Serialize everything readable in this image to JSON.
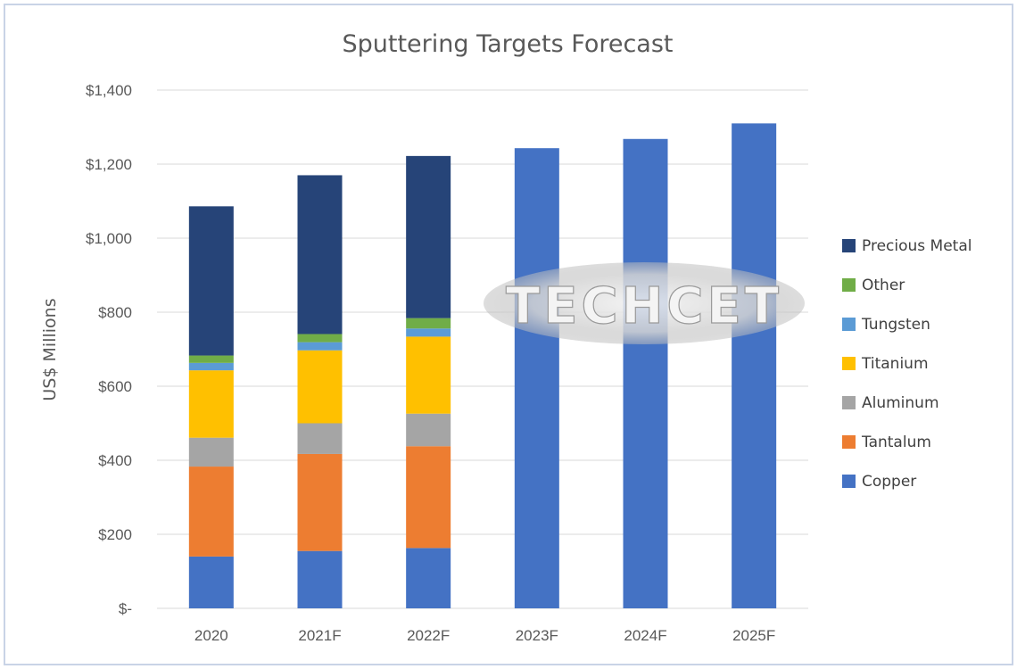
{
  "chart_data": {
    "type": "bar",
    "stacked": true,
    "title": "Sputtering Targets Forecast",
    "xlabel": "",
    "ylabel": "US$ Millions",
    "ylim": [
      0,
      1400
    ],
    "yticks": [
      0,
      200,
      400,
      600,
      800,
      1000,
      1200,
      1400
    ],
    "ytick_labels": [
      "$-",
      "$200",
      "$400",
      "$600",
      "$800",
      "$1,000",
      "$1,200",
      "$1,400"
    ],
    "grid": true,
    "legend_position": "right",
    "categories": [
      "2020",
      "2021F",
      "2022F",
      "2023F",
      "2024F",
      "2025F"
    ],
    "series": [
      {
        "name": "Copper",
        "color": "#4472c4",
        "values": [
          140,
          155,
          163,
          1243,
          1268,
          1310
        ]
      },
      {
        "name": "Tantalum",
        "color": "#ed7d31",
        "values": [
          243,
          262,
          275,
          0,
          0,
          0
        ]
      },
      {
        "name": "Aluminum",
        "color": "#a5a5a5",
        "values": [
          78,
          83,
          88,
          0,
          0,
          0
        ]
      },
      {
        "name": "Titanium",
        "color": "#ffc000",
        "values": [
          182,
          197,
          208,
          0,
          0,
          0
        ]
      },
      {
        "name": "Tungsten",
        "color": "#5b9bd5",
        "values": [
          20,
          22,
          22,
          0,
          0,
          0
        ]
      },
      {
        "name": "Other",
        "color": "#70ad47",
        "values": [
          20,
          22,
          28,
          0,
          0,
          0
        ]
      },
      {
        "name": "Precious Metal",
        "color": "#264478",
        "values": [
          403,
          429,
          438,
          0,
          0,
          0
        ]
      }
    ]
  },
  "watermark": {
    "text": "TECHCET"
  }
}
